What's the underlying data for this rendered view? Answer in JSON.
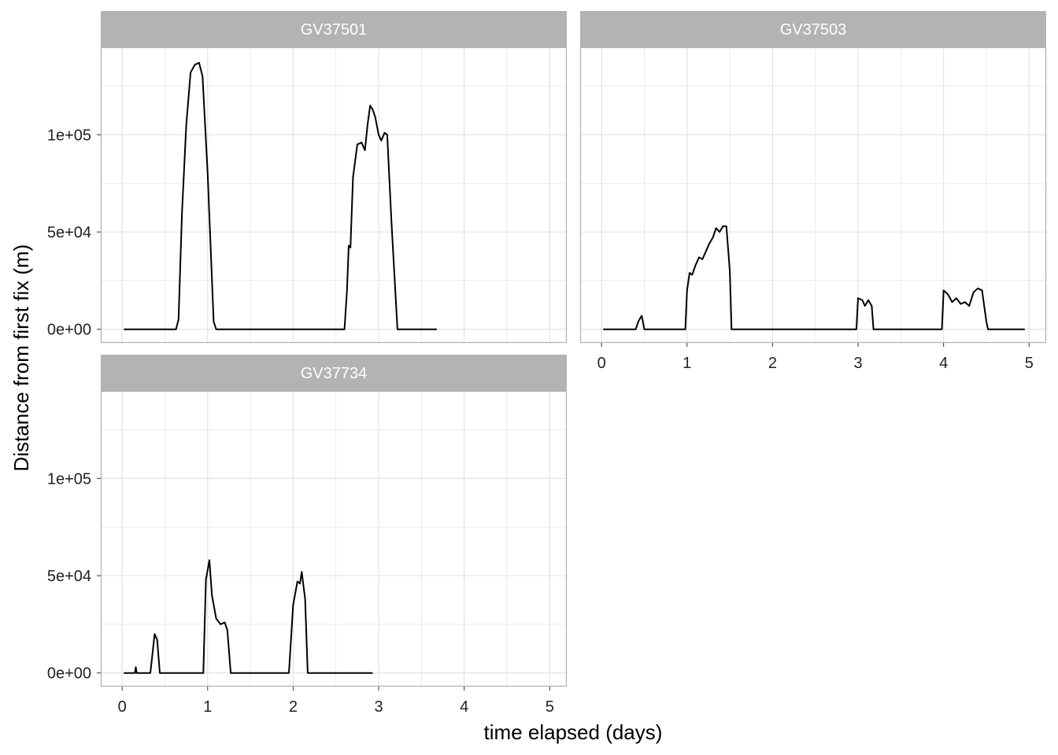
{
  "chart_data": {
    "type": "line",
    "facets": [
      "GV37501",
      "GV37503",
      "GV37734"
    ],
    "xlabel": "time elapsed (days)",
    "ylabel": "Distance from first fix (m)",
    "x_ticks": [
      0,
      1,
      2,
      3,
      4,
      5
    ],
    "y_ticks": [
      0,
      50000,
      100000
    ],
    "y_tick_labels": [
      "0e+00",
      "5e+04",
      "1e+05"
    ],
    "xlim": [
      -0.25,
      5.2
    ],
    "ylim": [
      -7000,
      145000
    ],
    "grid": true,
    "colors": {
      "line": "#000000",
      "strip": "#b3b3b3",
      "grid": "#e0e0e0",
      "border": "#b3b3b3"
    },
    "series": [
      {
        "name": "GV37501",
        "x": [
          0.02,
          0.63,
          0.66,
          0.7,
          0.75,
          0.8,
          0.85,
          0.9,
          0.94,
          1.0,
          1.07,
          1.1,
          2.6,
          2.63,
          2.65,
          2.67,
          2.7,
          2.75,
          2.8,
          2.84,
          2.87,
          2.9,
          2.93,
          2.96,
          3.0,
          3.03,
          3.07,
          3.1,
          3.15,
          3.22,
          3.68
        ],
        "y": [
          0,
          0,
          5000,
          60000,
          105000,
          132000,
          136000,
          137000,
          130000,
          80000,
          4000,
          0,
          0,
          20000,
          43000,
          42000,
          78000,
          95000,
          96000,
          92000,
          105000,
          115000,
          113000,
          109000,
          100000,
          97000,
          101000,
          100000,
          55000,
          0,
          0
        ]
      },
      {
        "name": "GV37503",
        "x": [
          0.02,
          0.4,
          0.43,
          0.47,
          0.5,
          0.52,
          0.98,
          1.0,
          1.03,
          1.06,
          1.1,
          1.14,
          1.18,
          1.22,
          1.26,
          1.3,
          1.34,
          1.38,
          1.42,
          1.46,
          1.5,
          1.52,
          2.98,
          3.0,
          3.05,
          3.08,
          3.12,
          3.16,
          3.18,
          3.98,
          4.0,
          4.05,
          4.1,
          4.15,
          4.2,
          4.25,
          4.3,
          4.35,
          4.4,
          4.45,
          4.5,
          4.52,
          4.95
        ],
        "y": [
          0,
          0,
          4000,
          7000,
          0,
          0,
          0,
          20000,
          29000,
          28000,
          33000,
          37000,
          36000,
          40000,
          44000,
          47000,
          52000,
          50000,
          53000,
          53000,
          30000,
          0,
          0,
          16000,
          15000,
          12000,
          15000,
          12000,
          0,
          0,
          20000,
          18000,
          14000,
          16000,
          13000,
          14000,
          12000,
          19000,
          21000,
          20000,
          4000,
          0,
          0
        ]
      },
      {
        "name": "GV37734",
        "x": [
          0.02,
          0.15,
          0.16,
          0.17,
          0.33,
          0.35,
          0.38,
          0.41,
          0.44,
          0.45,
          0.95,
          0.98,
          1.02,
          1.05,
          1.1,
          1.15,
          1.2,
          1.23,
          1.27,
          1.95,
          2.0,
          2.05,
          2.08,
          2.1,
          2.14,
          2.17,
          2.93
        ],
        "y": [
          0,
          0,
          3000,
          0,
          0,
          8000,
          20000,
          17000,
          0,
          0,
          0,
          48000,
          58000,
          40000,
          28000,
          25000,
          26000,
          22000,
          0,
          0,
          35000,
          47000,
          46000,
          52000,
          38000,
          0,
          0
        ]
      }
    ]
  }
}
